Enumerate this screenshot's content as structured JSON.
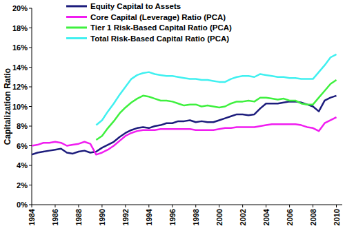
{
  "chart_data": {
    "type": "line",
    "y_label": "Capitalization Ratio",
    "x": [
      1984,
      1984.5,
      1985,
      1985.5,
      1986,
      1986.5,
      1987,
      1987.5,
      1988,
      1988.5,
      1989,
      1989.5,
      1990,
      1990.5,
      1991,
      1991.5,
      1992,
      1992.5,
      1993,
      1993.5,
      1994,
      1994.5,
      1995,
      1995.5,
      1996,
      1996.5,
      1997,
      1997.5,
      1998,
      1998.5,
      1999,
      1999.5,
      2000,
      2000.5,
      2001,
      2001.5,
      2002,
      2002.5,
      2003,
      2003.5,
      2004,
      2004.5,
      2005,
      2005.5,
      2006,
      2006.5,
      2007,
      2007.5,
      2008,
      2008.5,
      2009,
      2009.5,
      2010
    ],
    "series": [
      {
        "name": "Equity Capital to Assets",
        "color": "#1c1c7c",
        "values": [
          5.1,
          5.3,
          5.4,
          5.5,
          5.6,
          5.7,
          5.3,
          5.2,
          5.4,
          5.5,
          5.3,
          5.4,
          5.8,
          6.1,
          6.4,
          6.9,
          7.3,
          7.6,
          7.8,
          7.9,
          7.8,
          8.0,
          8.1,
          8.3,
          8.3,
          8.5,
          8.5,
          8.6,
          8.4,
          8.5,
          8.4,
          8.4,
          8.6,
          8.8,
          9.0,
          9.2,
          9.2,
          9.1,
          9.2,
          9.8,
          10.3,
          10.3,
          10.3,
          10.4,
          10.5,
          10.5,
          10.4,
          10.2,
          10.0,
          9.5,
          10.6,
          10.9,
          11.1
        ]
      },
      {
        "name": "Core Capital (Leverage) Ratio (PCA)",
        "color": "#f01cf0",
        "values": [
          6.0,
          6.1,
          6.3,
          6.3,
          6.4,
          6.3,
          6.0,
          6.1,
          6.2,
          6.4,
          6.2,
          5.1,
          5.3,
          5.6,
          6.0,
          6.5,
          7.0,
          7.3,
          7.5,
          7.6,
          7.6,
          7.6,
          7.7,
          7.7,
          7.7,
          7.7,
          7.7,
          7.7,
          7.6,
          7.6,
          7.6,
          7.6,
          7.7,
          7.8,
          7.8,
          7.9,
          7.9,
          7.9,
          7.9,
          8.0,
          8.1,
          8.2,
          8.2,
          8.2,
          8.2,
          8.2,
          8.1,
          7.9,
          7.8,
          7.5,
          8.3,
          8.6,
          8.9
        ]
      },
      {
        "name": "Tier 1 Risk-Based Capital Ratio (PCA)",
        "color": "#3ef03e",
        "values": [
          null,
          null,
          null,
          null,
          null,
          null,
          null,
          null,
          null,
          null,
          null,
          6.6,
          7.0,
          7.8,
          8.5,
          9.3,
          9.9,
          10.4,
          10.8,
          11.1,
          11.0,
          10.8,
          10.6,
          10.6,
          10.5,
          10.3,
          10.1,
          10.2,
          10.2,
          10.0,
          10.1,
          10.0,
          9.9,
          10.0,
          10.3,
          10.5,
          10.5,
          10.6,
          10.5,
          10.9,
          10.9,
          10.8,
          10.7,
          10.8,
          10.6,
          10.6,
          10.3,
          10.2,
          10.2,
          10.9,
          11.6,
          12.3,
          12.7
        ]
      },
      {
        "name": "Total Risk-Based Capital Ratio (PCA)",
        "color": "#40f0f0",
        "values": [
          null,
          null,
          null,
          null,
          null,
          null,
          null,
          null,
          null,
          null,
          null,
          8.1,
          8.6,
          9.5,
          10.3,
          11.2,
          12.0,
          12.8,
          13.2,
          13.4,
          13.5,
          13.3,
          13.2,
          13.1,
          13.1,
          13.0,
          12.9,
          12.8,
          12.8,
          12.7,
          12.7,
          12.6,
          12.5,
          12.5,
          12.8,
          13.0,
          13.1,
          13.1,
          13.0,
          13.3,
          13.2,
          13.1,
          13.0,
          13.0,
          12.9,
          12.9,
          12.8,
          12.8,
          12.8,
          13.5,
          14.2,
          15.0,
          15.3
        ]
      }
    ],
    "xlim": [
      1984,
      2010.5
    ],
    "xticks": [
      1984,
      1986,
      1988,
      1990,
      1992,
      1994,
      1996,
      1998,
      2000,
      2002,
      2004,
      2006,
      2008,
      2010
    ],
    "ylim": [
      0,
      20
    ],
    "yticks": [
      {
        "value": 0,
        "label": "0%"
      },
      {
        "value": 2,
        "label": "2%"
      },
      {
        "value": 4,
        "label": "4%"
      },
      {
        "value": 6,
        "label": "6%"
      },
      {
        "value": 8,
        "label": "8%"
      },
      {
        "value": 10,
        "label": "10%"
      },
      {
        "value": 12,
        "label": "12%"
      },
      {
        "value": 14,
        "label": "14%"
      },
      {
        "value": 16,
        "label": "16%"
      },
      {
        "value": 18,
        "label": "18%"
      },
      {
        "value": 20,
        "label": "20%"
      }
    ],
    "grid": false,
    "legend": "top-left"
  }
}
